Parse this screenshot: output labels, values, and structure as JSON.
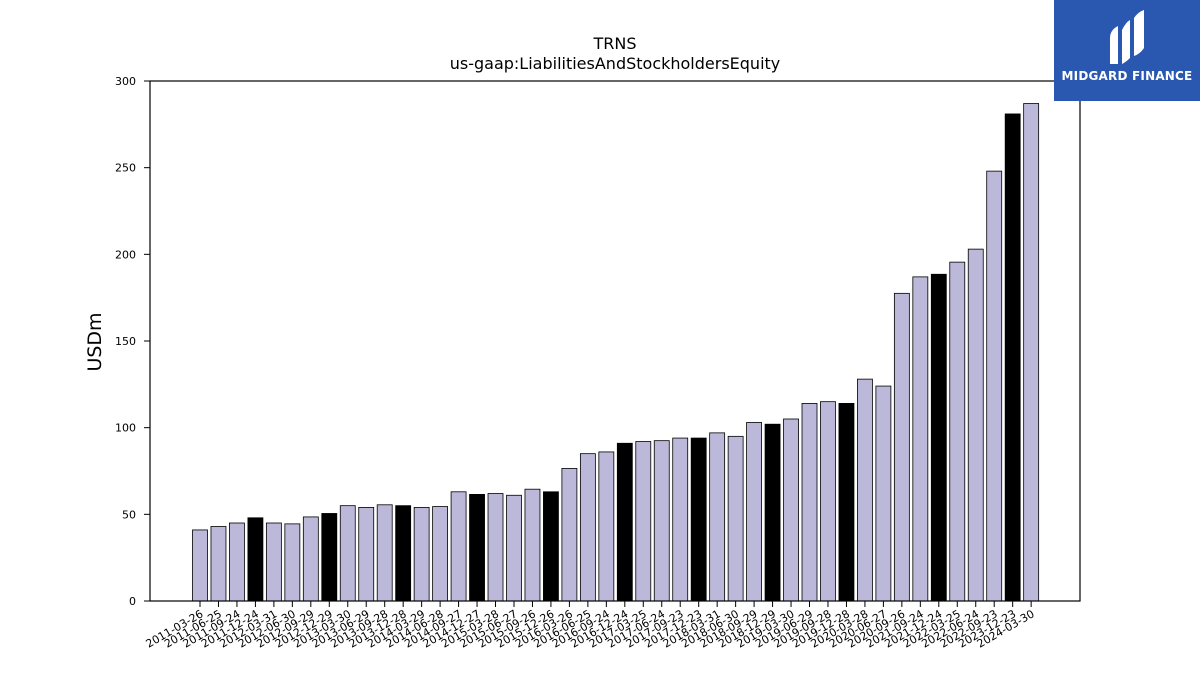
{
  "brand": {
    "name": "MIDGARD FINANCE",
    "bg_color": "#2a57b0"
  },
  "chart_data": {
    "type": "bar",
    "title": "TRNS",
    "subtitle": "us-gaap:LiabilitiesAndStockholdersEquity",
    "ylabel": "USDm",
    "xlabel": "",
    "ylim": [
      0,
      300
    ],
    "yticks": [
      0,
      50,
      100,
      150,
      200,
      250,
      300
    ],
    "grid": false,
    "legend": "none",
    "colors": {
      "quarter": "#bcb8da",
      "fiscal_year_end": "#000000",
      "edge": "#000000"
    },
    "categories": [
      "2011-03-26",
      "2011-06-25",
      "2011-09-24",
      "2011-12-24",
      "2012-03-31",
      "2012-06-30",
      "2012-09-29",
      "2012-12-29",
      "2013-03-30",
      "2013-06-29",
      "2013-09-28",
      "2013-12-28",
      "2014-03-29",
      "2014-06-28",
      "2014-09-27",
      "2014-12-27",
      "2015-03-28",
      "2015-06-27",
      "2015-09-26",
      "2015-12-26",
      "2016-03-26",
      "2016-06-25",
      "2016-09-24",
      "2016-12-24",
      "2017-03-25",
      "2017-06-24",
      "2017-09-23",
      "2017-12-23",
      "2018-03-31",
      "2018-06-30",
      "2018-09-29",
      "2018-12-29",
      "2019-03-30",
      "2019-06-29",
      "2019-09-28",
      "2019-12-28",
      "2020-03-28",
      "2020-06-27",
      "2020-09-26",
      "2021-09-24",
      "2021-12-24",
      "2022-03-25",
      "2022-06-24",
      "2022-09-23",
      "2023-12-23",
      "2024-03-30"
    ],
    "values": [
      41,
      43,
      45,
      48,
      45,
      44.5,
      48.5,
      50.5,
      55,
      54,
      55.5,
      55,
      54,
      54.5,
      63,
      61.5,
      62,
      61,
      64.5,
      63,
      76.5,
      85,
      86,
      91,
      92,
      92.5,
      94,
      94,
      97,
      95,
      103,
      102,
      105,
      114,
      115,
      114,
      128,
      124,
      177.5,
      187,
      188.5,
      195.5,
      203,
      248,
      281,
      287
    ],
    "fiscal_year_end": [
      false,
      false,
      false,
      true,
      false,
      false,
      false,
      true,
      false,
      false,
      false,
      true,
      false,
      false,
      false,
      true,
      false,
      false,
      false,
      true,
      false,
      false,
      false,
      true,
      false,
      false,
      false,
      true,
      false,
      false,
      false,
      true,
      false,
      false,
      false,
      true,
      false,
      false,
      false,
      false,
      true,
      false,
      false,
      false,
      true,
      false
    ]
  }
}
